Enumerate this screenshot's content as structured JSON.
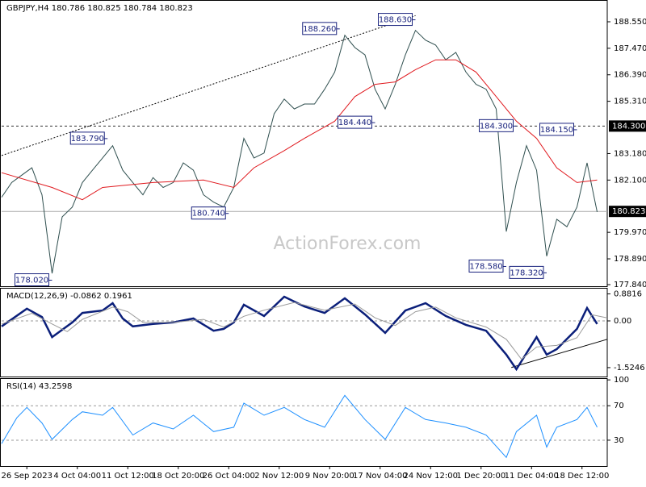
{
  "watermark": "ActionForex.com",
  "chart_data": [
    {
      "type": "line",
      "title": "GBPJPY,H4 180.786 180.825 180.784 180.823",
      "xlim": [
        0,
        120
      ],
      "ylim": [
        177.774,
        189.437
      ],
      "yticks": [
        {
          "value": 177.84,
          "label": "177.840"
        },
        {
          "value": 178.89,
          "label": "178.890"
        },
        {
          "value": 179.97,
          "label": "179.970"
        },
        {
          "value": 182.1,
          "label": "182.100"
        },
        {
          "value": 183.18,
          "label": "183.180"
        },
        {
          "value": 185.31,
          "label": "185.310"
        },
        {
          "value": 186.39,
          "label": "186.390"
        },
        {
          "value": 187.47,
          "label": "187.470"
        },
        {
          "value": 188.55,
          "label": "188.550"
        }
      ],
      "series": [
        {
          "color": "#2f4f4f",
          "x": [
            0,
            2,
            4,
            6,
            8,
            10,
            12,
            14,
            16,
            18,
            20,
            22,
            24,
            26,
            28,
            30,
            32,
            34,
            36,
            38,
            40,
            42,
            44,
            46,
            48,
            50,
            52,
            54,
            56,
            58,
            60,
            62,
            64,
            66,
            68,
            70,
            72,
            74,
            76,
            78,
            80,
            82,
            84,
            86,
            88,
            90,
            92,
            94,
            96,
            98,
            100,
            102,
            104,
            106,
            108,
            110,
            112,
            114,
            116,
            118
          ],
          "values": [
            181.4,
            182.0,
            182.3,
            182.6,
            181.5,
            178.3,
            180.6,
            181.0,
            182.0,
            182.5,
            183.0,
            183.5,
            182.5,
            182.0,
            181.5,
            182.2,
            181.8,
            182.0,
            182.8,
            182.5,
            181.5,
            181.2,
            181.0,
            181.8,
            183.8,
            183.0,
            183.2,
            184.8,
            185.4,
            185.0,
            185.2,
            185.2,
            185.8,
            186.5,
            188.0,
            187.5,
            187.2,
            185.8,
            185.0,
            186.0,
            187.2,
            188.2,
            187.8,
            187.6,
            187.0,
            187.3,
            186.5,
            186.0,
            185.8,
            185.0,
            180.0,
            182.0,
            183.5,
            182.5,
            179.0,
            180.5,
            180.2,
            181.0,
            182.8,
            180.8
          ]
        },
        {
          "color": "#e0191e",
          "x": [
            0,
            10,
            16,
            20,
            30,
            40,
            46,
            50,
            56,
            60,
            66,
            70,
            74,
            78,
            82,
            86,
            90,
            94,
            98,
            102,
            106,
            110,
            114,
            118
          ],
          "values": [
            182.4,
            181.8,
            181.3,
            181.8,
            182.0,
            182.1,
            181.8,
            182.6,
            183.3,
            183.8,
            184.5,
            185.5,
            186.0,
            186.1,
            186.6,
            187.0,
            187.0,
            186.5,
            185.5,
            184.5,
            183.8,
            182.6,
            182.0,
            182.1
          ]
        }
      ],
      "trendlines": [
        {
          "x": [
            0,
            82
          ],
          "values": [
            183.1,
            188.8
          ]
        }
      ],
      "hlines": [
        {
          "value": 184.3,
          "label": "184.300",
          "style": "dashed"
        },
        {
          "value": 180.823,
          "label": "180.823",
          "style": "solid"
        }
      ],
      "annotations": [
        {
          "label": "178.020",
          "x": 10,
          "value": 178.02
        },
        {
          "label": "183.790",
          "x": 21,
          "value": 183.79
        },
        {
          "label": "180.740",
          "x": 45,
          "value": 180.74
        },
        {
          "label": "188.260",
          "x": 67,
          "value": 188.26
        },
        {
          "label": "184.440",
          "x": 74,
          "value": 184.44
        },
        {
          "label": "188.630",
          "x": 82,
          "value": 188.63
        },
        {
          "label": "178.580",
          "x": 100,
          "value": 178.58
        },
        {
          "label": "184.300",
          "x": 102,
          "value": 184.3
        },
        {
          "label": "178.320",
          "x": 108,
          "value": 178.32
        },
        {
          "label": "184.150",
          "x": 114,
          "value": 184.15
        }
      ]
    },
    {
      "type": "line",
      "title": "MACD(12,26,9) -0.0862 0.1961",
      "xlim": [
        0,
        120
      ],
      "ylim": [
        -1.816,
        1.079
      ],
      "yticks": [
        0.8816,
        {
          "value": 0,
          "label": "0.00"
        },
        -1.5246
      ],
      "levels": [
        0
      ],
      "series": [
        {
          "color": "#0b1f7a",
          "x": [
            0,
            5,
            8,
            10,
            14,
            16,
            20,
            22,
            24,
            26,
            30,
            34,
            38,
            42,
            44,
            46,
            48,
            52,
            56,
            60,
            64,
            68,
            72,
            76,
            80,
            84,
            88,
            92,
            96,
            100,
            102,
            106,
            108,
            110,
            114,
            116,
            118
          ],
          "values": [
            -0.18,
            0.4,
            0.13,
            -0.53,
            -0.05,
            0.26,
            0.34,
            0.58,
            0.08,
            -0.18,
            -0.1,
            -0.05,
            0.08,
            -0.32,
            -0.26,
            -0.05,
            0.53,
            0.16,
            0.79,
            0.47,
            0.26,
            0.74,
            0.21,
            -0.39,
            0.34,
            0.58,
            0.16,
            -0.13,
            -0.32,
            -1.1,
            -1.58,
            -0.53,
            -1.1,
            -0.92,
            -0.26,
            0.42,
            -0.1
          ]
        },
        {
          "color": "#9a9a9a",
          "x": [
            0,
            6,
            10,
            13,
            16,
            22,
            25,
            28,
            34,
            40,
            44,
            48,
            52,
            58,
            64,
            70,
            74,
            78,
            82,
            86,
            90,
            96,
            100,
            103,
            106,
            110,
            114,
            117,
            120
          ],
          "values": [
            -0.1,
            0.25,
            -0.1,
            -0.35,
            0.05,
            0.45,
            0.3,
            -0.05,
            -0.05,
            0.05,
            -0.2,
            0.15,
            0.35,
            0.6,
            0.35,
            0.55,
            0.1,
            -0.15,
            0.3,
            0.45,
            0.1,
            -0.2,
            -0.6,
            -1.25,
            -0.85,
            -0.8,
            -0.55,
            0.2,
            0.1
          ]
        }
      ],
      "trendlines": [
        {
          "x": [
            101,
            120
          ],
          "values": [
            -1.52,
            -0.6
          ]
        }
      ]
    },
    {
      "type": "line",
      "title": "RSI(14) 43.2598",
      "xlim": [
        0,
        120
      ],
      "ylim": [
        0,
        102
      ],
      "yticks": [
        30,
        70,
        100
      ],
      "levels": [
        70,
        30
      ],
      "xticks": [
        {
          "value": 5,
          "label": "26 Sep 2023"
        },
        {
          "value": 15,
          "label": "4 Oct 04:00"
        },
        {
          "value": 25,
          "label": "11 Oct 12:00"
        },
        {
          "value": 35,
          "label": "18 Oct 20:00"
        },
        {
          "value": 45,
          "label": "26 Oct 04:00"
        },
        {
          "value": 55,
          "label": "2 Nov 12:00"
        },
        {
          "value": 65,
          "label": "9 Nov 20:00"
        },
        {
          "value": 75,
          "label": "17 Nov 04:00"
        },
        {
          "value": 85,
          "label": "24 Nov 12:00"
        },
        {
          "value": 95,
          "label": "1 Dec 20:00"
        },
        {
          "value": 105,
          "label": "11 Dec 04:00"
        },
        {
          "value": 115,
          "label": "18 Dec 12:00"
        }
      ],
      "series": [
        {
          "color": "#1e90ff",
          "x": [
            0,
            3,
            5,
            8,
            10,
            14,
            16,
            20,
            22,
            26,
            30,
            34,
            38,
            42,
            46,
            48,
            52,
            56,
            60,
            64,
            68,
            72,
            76,
            80,
            84,
            88,
            92,
            96,
            100,
            102,
            106,
            108,
            110,
            114,
            116,
            118
          ],
          "values": [
            26,
            56,
            68,
            50,
            31,
            54,
            63,
            59,
            68,
            36,
            50,
            43,
            59,
            40,
            45,
            73,
            59,
            68,
            54,
            45,
            82,
            54,
            31,
            68,
            54,
            50,
            45,
            36,
            10,
            40,
            59,
            22,
            45,
            54,
            68,
            45
          ]
        }
      ]
    }
  ]
}
